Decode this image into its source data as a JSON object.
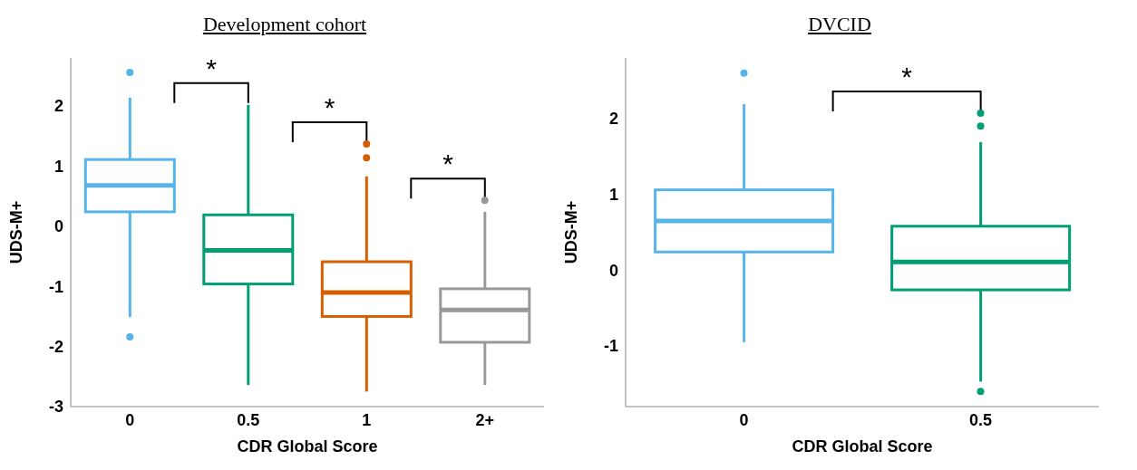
{
  "chart_data": [
    {
      "type": "box",
      "title": "Development cohort",
      "xlabel": "CDR Global Score",
      "ylabel": "UDS-M+",
      "categories": [
        "0",
        "0.5",
        "1",
        "2+"
      ],
      "colors": [
        "#56b4e9",
        "#009e73",
        "#d55e00",
        "#999999"
      ],
      "boxes": [
        {
          "low": -1.51,
          "q1": 0.24,
          "median": 0.68,
          "q3": 1.11,
          "high": 2.14,
          "outliers": [
            2.56,
            -1.84
          ]
        },
        {
          "low": -2.64,
          "q1": -0.96,
          "median": -0.4,
          "q3": 0.19,
          "high": 2.02
        },
        {
          "low": -2.75,
          "q1": -1.5,
          "median": -1.1,
          "q3": -0.59,
          "high": 0.83,
          "outliers": [
            1.37,
            1.14
          ]
        },
        {
          "low": -2.64,
          "q1": -1.93,
          "median": -1.39,
          "q3": -1.04,
          "high": 0.24,
          "outliers": [
            0.43
          ]
        }
      ],
      "ylim": [
        -3,
        2.8
      ],
      "yticks": [
        -3,
        -2,
        -1,
        0,
        1,
        2
      ],
      "annotations": [
        "*",
        "*",
        "*"
      ]
    },
    {
      "type": "box",
      "title": "DVCID",
      "xlabel": "CDR Global Score",
      "ylabel": "UDS-M+",
      "categories": [
        "0",
        "0.5"
      ],
      "colors": [
        "#56b4e9",
        "#009e73"
      ],
      "boxes": [
        {
          "low": -0.95,
          "q1": 0.24,
          "median": 0.65,
          "q3": 1.06,
          "high": 2.19,
          "outliers": [
            2.6
          ]
        },
        {
          "low": -1.47,
          "q1": -0.26,
          "median": 0.11,
          "q3": 0.58,
          "high": 1.69,
          "outliers": [
            2.07,
            1.9,
            -1.6
          ]
        }
      ],
      "ylim": [
        -1.8,
        2.8
      ],
      "yticks": [
        -1,
        0,
        1,
        2
      ],
      "annotations": [
        "*"
      ]
    }
  ]
}
